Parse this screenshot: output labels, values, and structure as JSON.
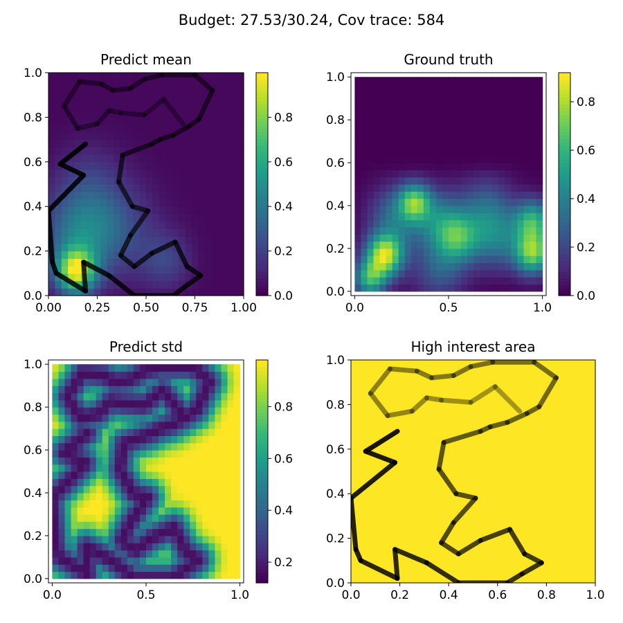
{
  "figure": {
    "suptitle": "Budget: 27.53/30.24,  Cov trace: 584"
  },
  "colormap": [
    "#440154",
    "#482878",
    "#3e4989",
    "#31688e",
    "#26828e",
    "#1f9e89",
    "#35b779",
    "#6ece58",
    "#b5de2b",
    "#fde725"
  ],
  "path_points": [
    [
      0.19,
      0.68
    ],
    [
      0.06,
      0.59
    ],
    [
      0.18,
      0.54
    ],
    [
      0.0,
      0.38
    ],
    [
      0.02,
      0.15
    ],
    [
      0.04,
      0.1
    ],
    [
      0.19,
      0.02
    ],
    [
      0.18,
      0.15
    ],
    [
      0.31,
      0.09
    ],
    [
      0.44,
      0.0
    ],
    [
      0.64,
      0.0
    ],
    [
      0.7,
      0.04
    ],
    [
      0.78,
      0.09
    ],
    [
      0.71,
      0.13
    ],
    [
      0.65,
      0.24
    ],
    [
      0.53,
      0.19
    ],
    [
      0.44,
      0.13
    ],
    [
      0.37,
      0.18
    ],
    [
      0.42,
      0.27
    ],
    [
      0.51,
      0.38
    ],
    [
      0.43,
      0.4
    ],
    [
      0.36,
      0.51
    ],
    [
      0.38,
      0.63
    ],
    [
      0.53,
      0.68
    ],
    [
      0.57,
      0.7
    ],
    [
      0.64,
      0.72
    ],
    [
      0.72,
      0.76
    ],
    [
      0.77,
      0.79
    ],
    [
      0.84,
      0.92
    ],
    [
      0.75,
      0.99
    ],
    [
      0.58,
      0.99
    ],
    [
      0.49,
      0.97
    ],
    [
      0.42,
      0.93
    ],
    [
      0.33,
      0.92
    ],
    [
      0.27,
      0.95
    ],
    [
      0.16,
      0.96
    ],
    [
      0.08,
      0.85
    ],
    [
      0.15,
      0.75
    ],
    [
      0.25,
      0.77
    ],
    [
      0.31,
      0.83
    ],
    [
      0.37,
      0.82
    ],
    [
      0.49,
      0.81
    ],
    [
      0.59,
      0.88
    ],
    [
      0.69,
      0.77
    ]
  ],
  "chart_data": [
    {
      "type": "heatmap",
      "title": "Predict mean",
      "xlim": [
        0,
        1
      ],
      "ylim": [
        0,
        1
      ],
      "xticks": [
        "0.00",
        "0.25",
        "0.50",
        "0.75",
        "1.00"
      ],
      "yticks": [
        "0.0",
        "0.2",
        "0.4",
        "0.6",
        "0.8",
        "1.0"
      ],
      "colorbar": {
        "min": 0.0,
        "max": 1.0,
        "ticks": [
          "0.0",
          "0.2",
          "0.4",
          "0.6",
          "0.8"
        ]
      },
      "field": {
        "base": 0.02,
        "blobs": [
          {
            "x": 0.14,
            "y": 0.11,
            "amp": 0.85,
            "s": 0.07
          },
          {
            "x": 0.15,
            "y": 0.28,
            "amp": 0.32,
            "s": 0.13
          },
          {
            "x": 0.33,
            "y": 0.3,
            "amp": 0.22,
            "s": 0.15
          },
          {
            "x": 0.6,
            "y": 0.16,
            "amp": 0.18,
            "s": 0.09
          },
          {
            "x": 0.2,
            "y": 0.52,
            "amp": 0.12,
            "s": 0.12
          }
        ]
      },
      "overlay_path": true
    },
    {
      "type": "heatmap",
      "title": "Ground truth",
      "xlim": [
        -0.02,
        1.02
      ],
      "ylim": [
        -0.02,
        1.02
      ],
      "xticks": [
        "0.0",
        "0.5",
        "1.0"
      ],
      "yticks": [
        "0.0",
        "0.2",
        "0.4",
        "0.6",
        "0.8",
        "1.0"
      ],
      "colorbar": {
        "min": 0.0,
        "max": 0.92,
        "ticks": [
          "0.0",
          "0.2",
          "0.4",
          "0.6",
          "0.8"
        ]
      },
      "field": {
        "base": 0.0,
        "blobs": [
          {
            "x": 0.16,
            "y": 0.17,
            "amp": 0.82,
            "s": 0.07
          },
          {
            "x": 0.08,
            "y": 0.06,
            "amp": 0.55,
            "s": 0.06
          },
          {
            "x": 0.32,
            "y": 0.42,
            "amp": 0.55,
            "s": 0.06
          },
          {
            "x": 0.22,
            "y": 0.35,
            "amp": 0.32,
            "s": 0.1
          },
          {
            "x": 0.55,
            "y": 0.25,
            "amp": 0.45,
            "s": 0.08
          },
          {
            "x": 0.45,
            "y": 0.33,
            "amp": 0.35,
            "s": 0.1
          },
          {
            "x": 0.75,
            "y": 0.25,
            "amp": 0.35,
            "s": 0.1
          },
          {
            "x": 0.95,
            "y": 0.18,
            "amp": 0.7,
            "s": 0.07
          },
          {
            "x": 0.95,
            "y": 0.33,
            "amp": 0.55,
            "s": 0.07
          },
          {
            "x": 0.7,
            "y": 0.4,
            "amp": 0.25,
            "s": 0.1
          },
          {
            "x": 0.45,
            "y": 0.1,
            "amp": 0.25,
            "s": 0.1
          }
        ],
        "top_cut": 0.55
      },
      "overlay_path": false
    },
    {
      "type": "heatmap",
      "title": "Predict std",
      "xlim": [
        -0.02,
        1.02
      ],
      "ylim": [
        -0.02,
        1.02
      ],
      "xticks": [
        "0.0",
        "0.5",
        "1.0"
      ],
      "yticks": [
        "0.0",
        "0.2",
        "0.4",
        "0.6",
        "0.8",
        "1.0"
      ],
      "colorbar": {
        "min": 0.12,
        "max": 0.98,
        "ticks": [
          "0.2",
          "0.4",
          "0.6",
          "0.8"
        ]
      },
      "field": {
        "mode": "std_from_path"
      },
      "overlay_path": false
    },
    {
      "type": "heatmap",
      "title": "High interest area",
      "xlim": [
        0,
        1
      ],
      "ylim": [
        0,
        1
      ],
      "xticks": [
        "0.0",
        "0.2",
        "0.4",
        "0.6",
        "0.8",
        "1.0"
      ],
      "yticks": [
        "0.0",
        "0.2",
        "0.4",
        "0.6",
        "0.8",
        "1.0"
      ],
      "field": {
        "mode": "uniform",
        "color": "#fde725"
      },
      "overlay_path": true
    }
  ]
}
